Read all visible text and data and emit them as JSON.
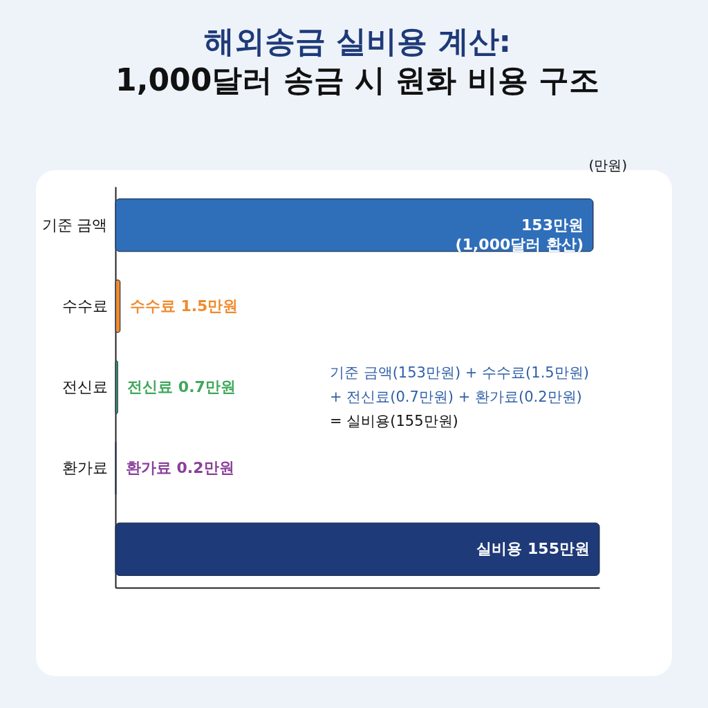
{
  "chart_data": {
    "type": "bar",
    "orientation": "horizontal",
    "title": "해외송금 실비용 계산:",
    "subtitle": "1,000달러 송금 시 원화 비용 구조",
    "xlabel": "(만원)",
    "categories": [
      "기준 금액",
      "수수료",
      "전신료",
      "환가료",
      null
    ],
    "values": [
      153,
      1.5,
      0.7,
      0.2,
      155
    ],
    "colors": [
      "#2f6fba",
      "#f08a2c",
      "#3fa85a",
      "#8a3f9a",
      "#1f3a78"
    ],
    "value_labels": [
      "153만원\n(1,000달러 환산)",
      "수수료 1.5만원",
      "전신료 0.7만원",
      "환가료 0.2만원",
      "실비용 155만원"
    ],
    "tick_labels": "y",
    "annotations": [
      "기준 금액(153만원) + 수수료(1.5만원)",
      "+ 전신료(0.7만원) + 환가료(0.2만원)",
      "= 실비용(155만원)"
    ]
  }
}
